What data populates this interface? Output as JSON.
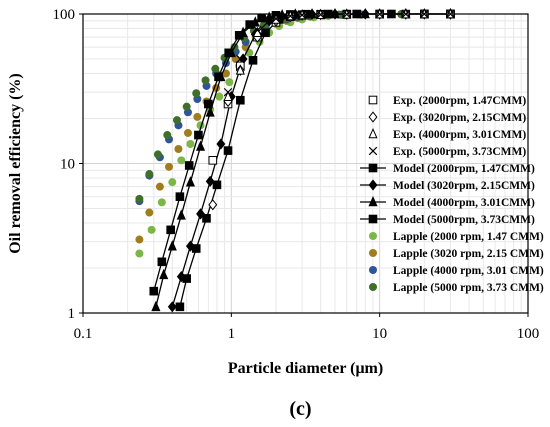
{
  "chart_data": {
    "type": "scatter",
    "panel_label": "(c)",
    "xlabel": "Particle diameter (μm)",
    "ylabel": "Oil removal efficiency (%)",
    "xscale": "log",
    "yscale": "log",
    "xlim": [
      0.1,
      100
    ],
    "ylim": [
      1,
      100
    ],
    "xticks": [
      {
        "v": 0.1,
        "label": "0.1"
      },
      {
        "v": 1,
        "label": "1"
      },
      {
        "v": 10,
        "label": "10"
      },
      {
        "v": 100,
        "label": "100"
      }
    ],
    "yticks": [
      {
        "v": 1,
        "label": "1"
      },
      {
        "v": 10,
        "label": "10"
      },
      {
        "v": 100,
        "label": "100"
      }
    ],
    "grid": true,
    "legend_position": "right",
    "series": [
      {
        "name": "Exp. (2000rpm, 1.47CMM)",
        "marker": "open-square",
        "color": "#000000",
        "line": false,
        "x": [
          0.75,
          0.95,
          1.15,
          1.5,
          2.0,
          2.5,
          3.0,
          4.0,
          6.0,
          10.0,
          15.0,
          20.0,
          30.0
        ],
        "y": [
          10.5,
          25,
          45,
          70,
          88,
          96,
          98,
          99,
          99.5,
          99.8,
          99.9,
          100,
          100
        ]
      },
      {
        "name": "Exp. (3020rpm, 2.15CMM)",
        "marker": "open-diamond",
        "color": "#000000",
        "line": false,
        "x": [
          0.75,
          0.95,
          1.15,
          1.5,
          2.0,
          2.5,
          3.0,
          4.0,
          6.0,
          10.0,
          15.0,
          20.0,
          30.0
        ],
        "y": [
          5.3,
          26,
          42,
          70,
          90,
          96,
          98,
          99,
          99.5,
          99.8,
          99.9,
          100,
          100
        ]
      },
      {
        "name": "Exp. (4000rpm, 3.01CMM)",
        "marker": "open-triangle",
        "color": "#000000",
        "line": false,
        "x": [
          0.95,
          1.15,
          1.5,
          2.0,
          2.5,
          3.0,
          4.0,
          6.0,
          10.0,
          15.0,
          20.0,
          30.0
        ],
        "y": [
          28,
          42,
          75,
          92,
          97,
          98.5,
          99,
          99.5,
          99.8,
          99.9,
          100,
          100
        ]
      },
      {
        "name": "Exp. (5000rpm, 3.73CMM)",
        "marker": "x",
        "color": "#000000",
        "line": false,
        "x": [
          0.95,
          1.15,
          1.5,
          2.0,
          2.5,
          3.0,
          4.0,
          6.0,
          10.0,
          15.0,
          20.0,
          30.0
        ],
        "y": [
          30,
          50,
          78,
          93,
          97,
          98.5,
          99,
          99.5,
          99.8,
          99.9,
          100,
          100
        ]
      },
      {
        "name": "Model (2000rpm, 1.47CMM)",
        "marker": "filled-square",
        "color": "#000000",
        "line": true,
        "x": [
          0.45,
          0.5,
          0.58,
          0.68,
          0.8,
          0.95,
          1.15,
          1.4,
          1.7,
          2.1,
          2.5,
          3.0,
          4.0,
          6.0,
          10.0,
          20.0,
          30.0
        ],
        "y": [
          1.1,
          1.7,
          2.7,
          4.3,
          7.2,
          12.2,
          26.5,
          49,
          75,
          92,
          97,
          99,
          99.7,
          99.9,
          100,
          100,
          100
        ]
      },
      {
        "name": "Model (3020rpm, 2.15CMM)",
        "marker": "filled-diamond",
        "color": "#000000",
        "line": true,
        "x": [
          0.4,
          0.46,
          0.53,
          0.62,
          0.72,
          0.85,
          1.0,
          1.2,
          1.45,
          1.8,
          2.2,
          2.7,
          3.5,
          5.0,
          8.0,
          15.0,
          30.0
        ],
        "y": [
          1.1,
          1.75,
          2.8,
          4.6,
          7.6,
          13.5,
          28,
          50,
          73,
          90,
          96.5,
          99,
          99.7,
          99.9,
          100,
          100,
          100
        ]
      },
      {
        "name": "Model (4000rpm, 3.01CMM)",
        "marker": "filled-triangle",
        "color": "#000000",
        "line": true,
        "x": [
          0.31,
          0.35,
          0.4,
          0.46,
          0.53,
          0.62,
          0.72,
          0.85,
          1.0,
          1.2,
          1.45,
          1.8,
          2.2,
          2.7,
          3.5,
          5.0,
          8.0,
          15.0,
          30.0
        ],
        "y": [
          1.1,
          1.8,
          2.8,
          4.5,
          7.5,
          13,
          22,
          38,
          55,
          75,
          88,
          95,
          98.5,
          99.5,
          99.8,
          100,
          100,
          100,
          100
        ]
      },
      {
        "name": "Model (5000rpm, 3.73CMM)",
        "marker": "filled-square",
        "color": "#000000",
        "line": true,
        "x": [
          0.3,
          0.34,
          0.39,
          0.45,
          0.52,
          0.6,
          0.7,
          0.82,
          0.96,
          1.13,
          1.33,
          1.6,
          2.0,
          2.5,
          3.2,
          4.5,
          7.0,
          12.0,
          20.0,
          30.0
        ],
        "y": [
          1.4,
          2.2,
          3.6,
          6,
          9.7,
          15.5,
          25,
          38,
          55,
          72,
          85,
          94,
          98,
          99.3,
          99.7,
          99.9,
          100,
          100,
          100,
          100
        ]
      },
      {
        "name": "Lapple (2000 rpm, 1.47 CMM)",
        "marker": "filled-circle",
        "color": "#7ab648",
        "line": false,
        "x": [
          0.24,
          0.29,
          0.34,
          0.4,
          0.46,
          0.53,
          0.62,
          0.72,
          0.83,
          0.97,
          1.13,
          1.32,
          1.55,
          1.8,
          2.1,
          2.5,
          3.0,
          3.6,
          4.5,
          5.8,
          7.5,
          10.0,
          14.0,
          20.0,
          30.0
        ],
        "y": [
          2.5,
          3.6,
          5.5,
          7.5,
          10.5,
          13.5,
          18,
          23,
          28,
          35,
          45,
          55,
          65,
          75,
          83,
          88,
          92,
          95,
          97,
          98,
          99,
          99.5,
          99.7,
          99.9,
          100
        ]
      },
      {
        "name": "Lapple (3020 rpm, 2.15 CMM)",
        "marker": "filled-circle",
        "color": "#a07d1c",
        "line": false,
        "x": [
          0.24,
          0.28,
          0.33,
          0.38,
          0.44,
          0.51,
          0.59,
          0.68,
          0.79,
          0.92,
          1.07,
          1.25,
          1.46,
          1.7,
          2.0,
          2.35,
          2.8,
          3.4,
          4.2,
          5.5,
          7.5,
          10.0,
          14.0,
          20.0,
          30.0
        ],
        "y": [
          3.1,
          4.7,
          7,
          9.5,
          12.5,
          16,
          20.5,
          26,
          32,
          40,
          50,
          60,
          70,
          79,
          86,
          90,
          94,
          96,
          97.5,
          98.5,
          99,
          99.5,
          99.7,
          99.9,
          100
        ]
      },
      {
        "name": "Lapple (4000 rpm, 3.01 CMM)",
        "marker": "filled-circle",
        "color": "#2f5597",
        "line": false,
        "x": [
          0.24,
          0.28,
          0.33,
          0.38,
          0.44,
          0.51,
          0.59,
          0.68,
          0.79,
          0.92,
          1.07,
          1.25,
          1.46,
          1.7,
          2.0,
          2.35,
          2.8,
          3.4,
          4.2,
          5.5,
          7.5,
          10.0,
          14.0,
          20.0,
          30.0
        ],
        "y": [
          5.6,
          8.3,
          11,
          14.5,
          18,
          22,
          27,
          33,
          40,
          47,
          56,
          65,
          74,
          82,
          88,
          92,
          95,
          97,
          98,
          99,
          99.4,
          99.7,
          99.8,
          99.9,
          100
        ]
      },
      {
        "name": "Lapple (5000 rpm, 3.73 CMM)",
        "marker": "filled-circle",
        "color": "#3f6f2a",
        "line": false,
        "x": [
          0.24,
          0.28,
          0.32,
          0.37,
          0.43,
          0.5,
          0.58,
          0.67,
          0.78,
          0.9,
          1.05,
          1.22,
          1.42,
          1.65,
          1.95,
          2.3,
          2.75,
          3.3,
          4.1,
          5.3,
          7.2,
          10.0,
          14.0,
          20.0,
          30.0
        ],
        "y": [
          5.8,
          8.5,
          11.5,
          15.5,
          19.5,
          24,
          29.5,
          36,
          43,
          51,
          60,
          69,
          77,
          84,
          89,
          93,
          95.5,
          97,
          98,
          99,
          99.4,
          99.7,
          99.8,
          99.9,
          100
        ]
      }
    ]
  }
}
